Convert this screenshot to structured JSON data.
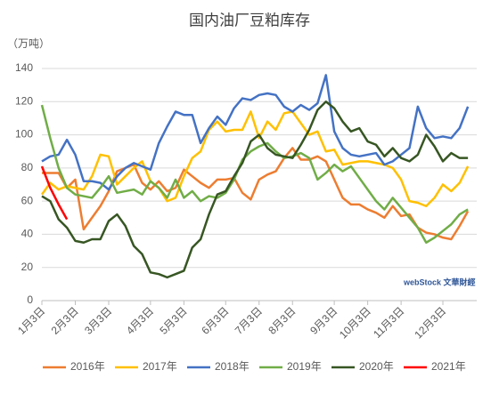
{
  "chart_data": {
    "type": "line",
    "title": "国内油厂豆粕库存",
    "y_label": "（万吨）",
    "watermark": "webStock 文華財經",
    "categories": [
      "1月3日",
      null,
      null,
      null,
      "2月3日",
      null,
      null,
      null,
      "3月3日",
      null,
      null,
      null,
      null,
      "4月3日",
      null,
      null,
      null,
      "5月3日",
      null,
      null,
      null,
      null,
      "6月3日",
      null,
      null,
      null,
      "7月3日",
      null,
      null,
      null,
      "8月3日",
      null,
      null,
      null,
      null,
      "9月3日",
      null,
      null,
      null,
      "10月3日",
      null,
      null,
      null,
      "11月3日",
      null,
      null,
      null,
      null,
      "12月3日",
      null,
      null,
      null
    ],
    "ylim": [
      0,
      140
    ],
    "yticks": [
      0,
      20,
      40,
      60,
      80,
      100,
      120,
      140
    ],
    "grid": true,
    "legend": "bottom",
    "series": [
      {
        "name": "2016年",
        "color": "#ed7d31",
        "values": [
          77,
          77,
          77,
          68,
          73,
          43,
          50,
          57,
          66,
          78,
          80,
          82,
          71,
          67,
          72,
          66,
          68,
          79,
          75,
          71,
          68,
          73,
          73,
          74,
          65,
          61,
          73,
          76,
          78,
          86,
          92,
          85,
          85,
          87,
          84,
          73,
          62,
          58,
          58,
          55,
          53,
          50,
          57,
          51,
          52,
          44,
          41,
          40,
          38,
          37,
          45,
          54
        ]
      },
      {
        "name": "2017年",
        "color": "#ffc000",
        "values": [
          64,
          71,
          67,
          69,
          68,
          67,
          75,
          88,
          87,
          70,
          75,
          80,
          84,
          72,
          68,
          60,
          62,
          75,
          86,
          90,
          103,
          108,
          102,
          103,
          103,
          114,
          98,
          108,
          103,
          113,
          114,
          107,
          100,
          102,
          90,
          91,
          82,
          83,
          84,
          84,
          83,
          82,
          80,
          73,
          60,
          59,
          57,
          62,
          70,
          66,
          71,
          81
        ]
      },
      {
        "name": "2018年",
        "color": "#4472c4",
        "values": [
          84,
          87,
          88,
          97,
          88,
          72,
          72,
          71,
          67,
          75,
          80,
          83,
          81,
          79,
          95,
          105,
          114,
          112,
          112,
          95,
          104,
          111,
          106,
          116,
          122,
          121,
          124,
          125,
          124,
          117,
          114,
          118,
          115,
          119,
          136,
          102,
          92,
          88,
          87,
          88,
          89,
          82,
          84,
          88,
          92,
          117,
          104,
          98,
          99,
          98,
          104,
          117
        ]
      },
      {
        "name": "2019年",
        "color": "#70ad47",
        "values": [
          118,
          98,
          80,
          68,
          64,
          63,
          62,
          68,
          75,
          65,
          66,
          67,
          64,
          72,
          68,
          62,
          73,
          62,
          66,
          60,
          63,
          62,
          65,
          73,
          85,
          90,
          93,
          95,
          90,
          86,
          87,
          89,
          86,
          73,
          77,
          82,
          78,
          81,
          74,
          67,
          60,
          55,
          62,
          56,
          50,
          44,
          35,
          38,
          42,
          46,
          52,
          55
        ]
      },
      {
        "name": "2020年",
        "color": "#375623",
        "values": [
          63,
          60,
          49,
          44,
          36,
          35,
          37,
          37,
          48,
          52,
          45,
          33,
          28,
          17,
          16,
          14,
          16,
          18,
          32,
          37,
          52,
          64,
          66,
          75,
          83,
          96,
          100,
          92,
          88,
          87,
          86,
          94,
          103,
          115,
          120,
          116,
          108,
          102,
          104,
          96,
          94,
          87,
          92,
          86,
          84,
          88,
          100,
          93,
          84,
          89,
          86,
          86
        ]
      },
      {
        "name": "2021年",
        "color": "#ff0000",
        "values": [
          81,
          68,
          58,
          49,
          null,
          null,
          null,
          null,
          null,
          null,
          null,
          null,
          null,
          null,
          null,
          null,
          null,
          null,
          null,
          null,
          null,
          null,
          null,
          null,
          null,
          null,
          null,
          null,
          null,
          null,
          null,
          null,
          null,
          null,
          null,
          null,
          null,
          null,
          null,
          null,
          null,
          null,
          null,
          null,
          null,
          null,
          null,
          null,
          null,
          null,
          null,
          null
        ]
      }
    ]
  }
}
